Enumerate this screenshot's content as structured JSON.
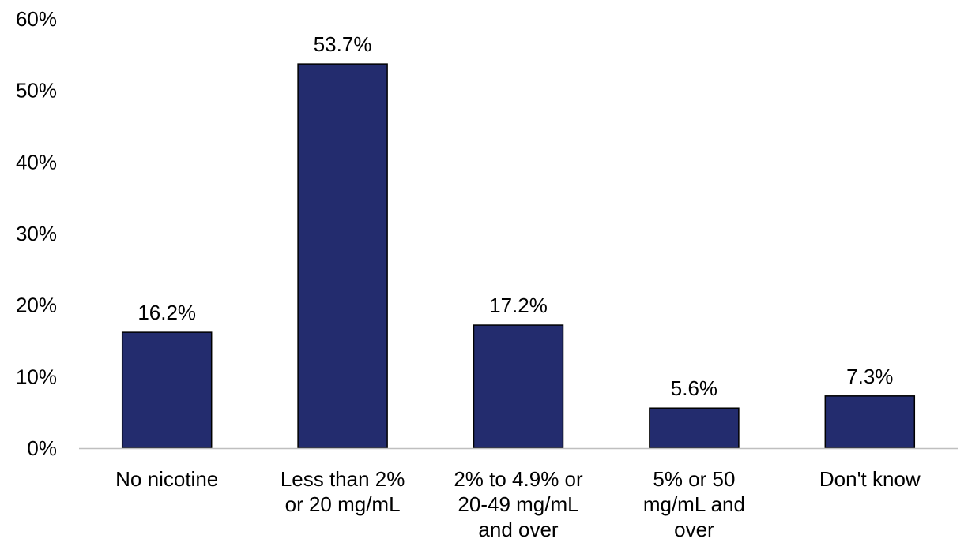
{
  "chart_data": {
    "type": "bar",
    "title": "",
    "xlabel": "",
    "ylabel": "",
    "ylim": [
      0,
      60
    ],
    "yticks": [
      0,
      10,
      20,
      30,
      40,
      50,
      60
    ],
    "ytick_labels": [
      "0%",
      "10%",
      "20%",
      "30%",
      "40%",
      "50%",
      "60%"
    ],
    "grid": false,
    "categories": [
      [
        "No nicotine"
      ],
      [
        "Less than 2%",
        "or 20 mg/mL"
      ],
      [
        "2% to 4.9% or",
        "20-49 mg/mL",
        "and over"
      ],
      [
        "5% or 50",
        "mg/mL and",
        "over"
      ],
      [
        "Don't know"
      ]
    ],
    "values": [
      16.2,
      53.7,
      17.2,
      5.6,
      7.3
    ],
    "data_labels": [
      "16.2%",
      "53.7%",
      "17.2%",
      "5.6%",
      "7.3%"
    ],
    "bar_color": "#232c6e",
    "bar_edge_color": "#000000",
    "axis_color": "#bfbfbf"
  }
}
